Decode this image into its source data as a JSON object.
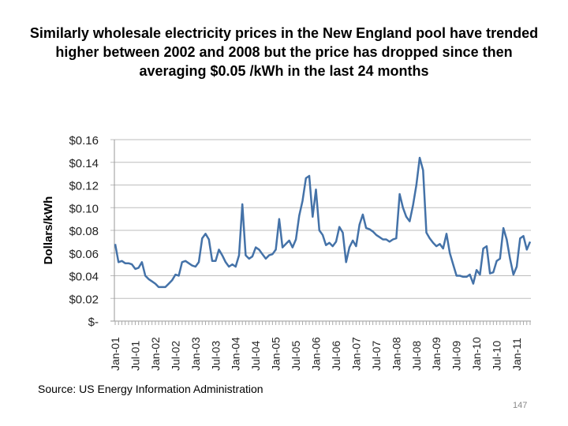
{
  "slide": {
    "title": "Similarly wholesale electricity prices in the New England pool have trended higher between 2002 and 2008 but the price has dropped since then averaging $0.05 /kWh in the last 24 months",
    "source": "Source: US Energy Information Administration",
    "page_number": "147"
  },
  "chart_data": {
    "type": "line",
    "title": "",
    "xlabel": "",
    "ylabel": "Dollars/kWh",
    "ylim": [
      0,
      0.16
    ],
    "yticks": [
      0,
      0.02,
      0.04,
      0.06,
      0.08,
      0.1,
      0.12,
      0.14,
      0.16
    ],
    "ytick_labels": [
      "$-",
      "$0.02",
      "$0.04",
      "$0.06",
      "$0.08",
      "$0.10",
      "$0.12",
      "$0.14",
      "$0.16"
    ],
    "xtick_labels": [
      "Jan-01",
      "Jul-01",
      "Jan-02",
      "Jul-02",
      "Jan-03",
      "Jul-03",
      "Jan-04",
      "Jul-04",
      "Jan-05",
      "Jul-05",
      "Jan-06",
      "Jul-06",
      "Jan-07",
      "Jul-07",
      "Jan-08",
      "Jul-08",
      "Jan-09",
      "Jul-09",
      "Jan-10",
      "Jul-10",
      "Jan-11"
    ],
    "x_start": "Jan-01",
    "grid": true,
    "line_color": "#4472a8",
    "series": [
      {
        "values": [
          0.068,
          0.052,
          0.053,
          0.051,
          0.051,
          0.05,
          0.046,
          0.047,
          0.052,
          0.04,
          0.037,
          0.035,
          0.033,
          0.03,
          0.03,
          0.03,
          0.033,
          0.036,
          0.041,
          0.04,
          0.052,
          0.053,
          0.051,
          0.049,
          0.048,
          0.052,
          0.073,
          0.077,
          0.072,
          0.053,
          0.053,
          0.063,
          0.058,
          0.052,
          0.048,
          0.05,
          0.048,
          0.058,
          0.103,
          0.058,
          0.055,
          0.057,
          0.065,
          0.063,
          0.059,
          0.055,
          0.058,
          0.059,
          0.063,
          0.09,
          0.065,
          0.068,
          0.071,
          0.065,
          0.072,
          0.093,
          0.106,
          0.126,
          0.128,
          0.092,
          0.116,
          0.08,
          0.076,
          0.067,
          0.069,
          0.066,
          0.07,
          0.083,
          0.078,
          0.052,
          0.065,
          0.071,
          0.066,
          0.085,
          0.094,
          0.082,
          0.081,
          0.079,
          0.076,
          0.074,
          0.072,
          0.072,
          0.07,
          0.072,
          0.073,
          0.112,
          0.1,
          0.092,
          0.088,
          0.102,
          0.12,
          0.144,
          0.133,
          0.078,
          0.073,
          0.069,
          0.066,
          0.068,
          0.064,
          0.077,
          0.06,
          0.05,
          0.04,
          0.04,
          0.039,
          0.039,
          0.041,
          0.033,
          0.045,
          0.041,
          0.064,
          0.066,
          0.042,
          0.043,
          0.053,
          0.055,
          0.082,
          0.072,
          0.055,
          0.041,
          0.048,
          0.073,
          0.075,
          0.063,
          0.07
        ]
      }
    ]
  }
}
